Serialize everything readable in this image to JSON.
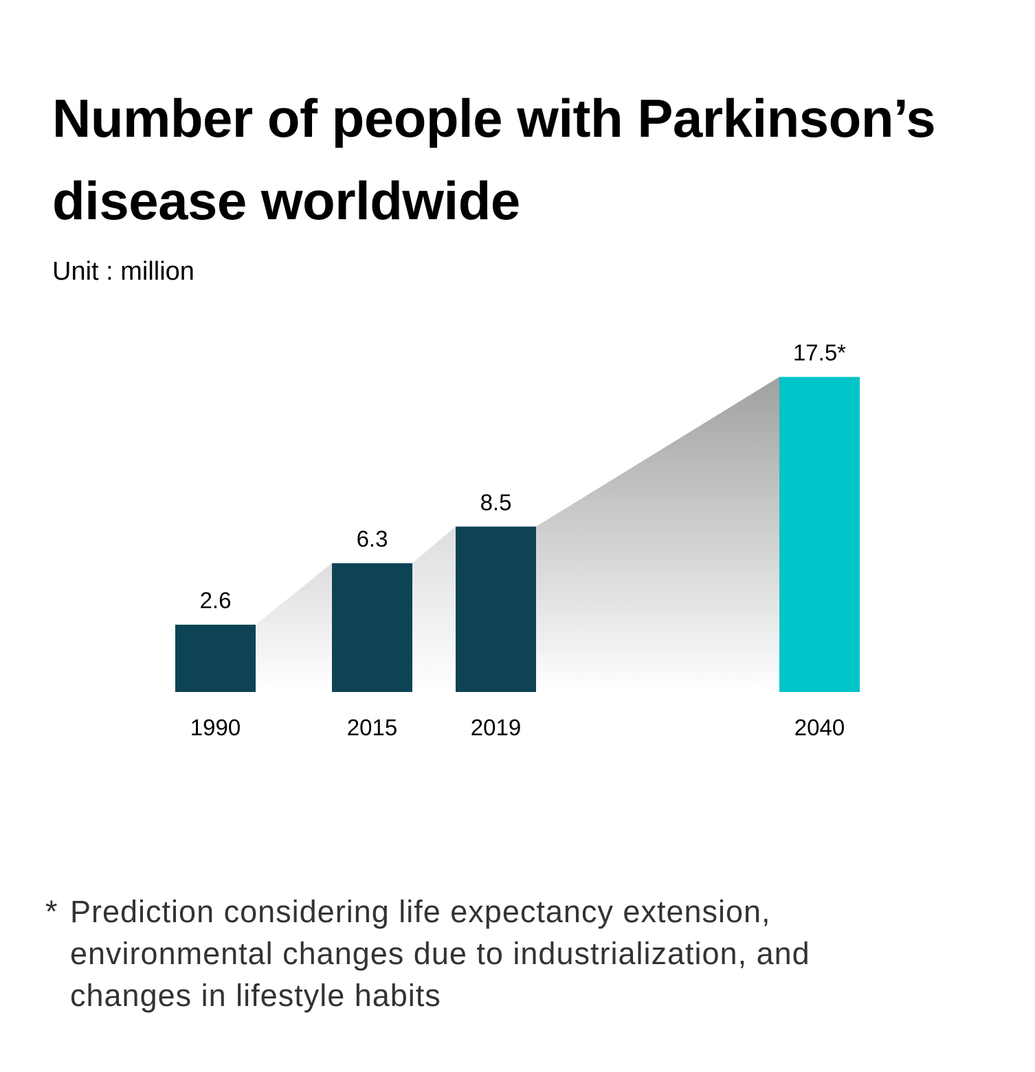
{
  "chart_data": {
    "type": "bar",
    "title": "Number of people with Parkinson’s disease worldwide",
    "unit_label": "Unit : million",
    "categories": [
      "1990",
      "2015",
      "2019",
      "2040"
    ],
    "values": [
      2.6,
      6.3,
      8.5,
      17.5
    ],
    "data_labels": [
      "2.6",
      "6.3",
      "8.5",
      "17.5*"
    ],
    "colors": [
      "#0e4356",
      "#0e4356",
      "#0e4356",
      "#00c4c8"
    ],
    "connector_fill": "gray gradient fading to white",
    "grid": false,
    "footnote_marker": "*",
    "footnote": "Prediction considering life expectancy extension, environmental changes due to industrialization, and changes in lifestyle habits"
  }
}
